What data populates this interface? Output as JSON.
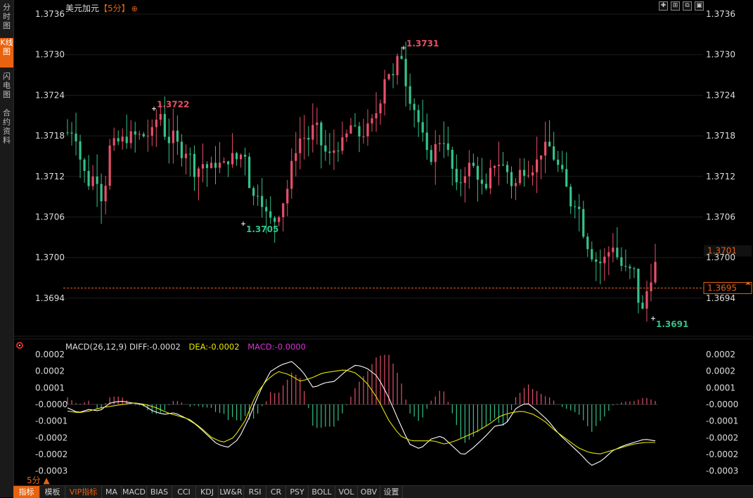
{
  "sidebar": {
    "tabs": [
      {
        "label": "分时图",
        "active": false
      },
      {
        "label": "K线图",
        "active": true
      },
      {
        "label": "闪电图",
        "active": false
      },
      {
        "label": "合约资料",
        "active": false
      }
    ]
  },
  "header": {
    "symbol": "美元加元",
    "period": "【5分】",
    "period_icon": "target-icon"
  },
  "window_controls": [
    {
      "name": "crosshair-icon",
      "glyph": "✚"
    },
    {
      "name": "expand-icon",
      "glyph": "⊞"
    },
    {
      "name": "restore-icon",
      "glyph": "⧉"
    },
    {
      "name": "box-icon",
      "glyph": "▣"
    }
  ],
  "macd": {
    "label": "MACD(26,12,9)",
    "diff": "DIFF:-0.0002",
    "dea": "DEA:-0.0002",
    "macd": "MACD:-0.0000"
  },
  "bottom": {
    "period": "5分 ▲"
  },
  "toolbar": [
    {
      "label": "指标",
      "active": true
    },
    {
      "label": "模板"
    },
    {
      "label": "VIP指标",
      "vip": true
    },
    {
      "label": "MA"
    },
    {
      "label": "MACD"
    },
    {
      "label": "BIAS"
    },
    {
      "label": "CCI"
    },
    {
      "label": "KDJ"
    },
    {
      "label": "LW&R"
    },
    {
      "label": "RSI"
    },
    {
      "label": "CR"
    },
    {
      "label": "PSY"
    },
    {
      "label": "BOLL"
    },
    {
      "label": "VOL"
    },
    {
      "label": "OBV"
    },
    {
      "label": "设置"
    }
  ],
  "colors": {
    "up": "#e84f6a",
    "down": "#33c38a",
    "diff": "#ffffff",
    "dea": "#e6e600",
    "accent": "#e8620f",
    "dashed": "#e8620f"
  },
  "chart_data": [
    {
      "type": "candlestick",
      "title": "美元加元【5分】",
      "y_ticks": [
        "1.3736",
        "1.3730",
        "1.3724",
        "1.3718",
        "1.3712",
        "1.3706",
        "1.3700",
        "1.3694"
      ],
      "ylim": [
        1.3689,
        1.3737
      ],
      "annotations": [
        {
          "label": "1.3722",
          "value": 1.3722,
          "kind": "high"
        },
        {
          "label": "1.3705",
          "value": 1.3705,
          "kind": "low"
        },
        {
          "label": "1.3731",
          "value": 1.3731,
          "kind": "high"
        },
        {
          "label": "1.3691",
          "value": 1.3691,
          "kind": "low"
        }
      ],
      "current_price": {
        "label": "1.3701",
        "value": 1.3701
      },
      "reference_line": {
        "label": "1.3695",
        "value": 1.36955
      },
      "waypoints": [
        [
          1.37185,
          1.3719
        ],
        [
          1.37135,
          1.3711
        ],
        [
          1.37125,
          1.3708
        ],
        [
          1.37165,
          1.3717
        ],
        [
          1.37175,
          1.3718
        ],
        [
          1.3718,
          1.3718
        ],
        [
          1.37185,
          1.3722
        ],
        [
          1.3717,
          1.3718
        ],
        [
          1.37155,
          1.3716
        ],
        [
          1.37125,
          1.3714
        ],
        [
          1.3713,
          1.3714
        ],
        [
          1.37135,
          1.3715
        ],
        [
          1.37145,
          1.3716
        ],
        [
          1.37085,
          1.371
        ],
        [
          1.37065,
          1.3705
        ],
        [
          1.3707,
          1.371
        ],
        [
          1.37155,
          1.3718
        ],
        [
          1.37175,
          1.372
        ],
        [
          1.3716,
          1.3715
        ],
        [
          1.37165,
          1.3717
        ],
        [
          1.37195,
          1.3718
        ],
        [
          1.37185,
          1.372
        ],
        [
          1.37225,
          1.3728
        ],
        [
          1.37265,
          1.3731
        ],
        [
          1.37245,
          1.3722
        ],
        [
          1.37185,
          1.3714
        ],
        [
          1.37165,
          1.3718
        ],
        [
          1.37145,
          1.371
        ],
        [
          1.37125,
          1.3714
        ],
        [
          1.3712,
          1.3709
        ],
        [
          1.3714,
          1.3714
        ],
        [
          1.3713,
          1.371
        ],
        [
          1.3713,
          1.3713
        ],
        [
          1.37135,
          1.3716
        ],
        [
          1.37165,
          1.3714
        ],
        [
          1.3712,
          1.3708
        ],
        [
          1.37085,
          1.3703
        ],
        [
          1.37005,
          1.3699
        ],
        [
          1.37,
          1.3702
        ],
        [
          1.3699,
          1.3698
        ],
        [
          1.3698,
          1.3691
        ],
        [
          1.3696,
          1.3699
        ]
      ]
    },
    {
      "type": "macd",
      "y_ticks": [
        "0.0002",
        "0.0002",
        "0.0001",
        "-0.0000",
        "-0.0001",
        "-0.0002",
        "-0.0002",
        "-0.0003"
      ],
      "ylim": [
        -0.00038,
        0.00029
      ],
      "series": [
        {
          "name": "DIFF",
          "waypoints": [
            -2e-05,
            -5e-05,
            -3e-05,
            -4e-05,
            1e-05,
            2e-05,
            1e-05,
            0.0,
            -4e-05,
            -6e-05,
            -5e-05,
            -8e-05,
            -0.00012,
            -0.00018,
            -0.00024,
            -0.00026,
            -0.00021,
            -8e-05,
            8e-05,
            0.0002,
            0.00024,
            0.00026,
            0.0002,
            0.0001,
            0.00013,
            0.00014,
            0.0002,
            0.00024,
            0.00022,
            0.00017,
            5e-05,
            -0.0001,
            -0.00024,
            -0.00027,
            -0.00021,
            -0.00019,
            -0.00025,
            -0.00031,
            -0.00026,
            -0.0002,
            -0.00013,
            -0.00012,
            -2e-05,
            1e-05,
            -4e-05,
            -0.0001,
            -0.00018,
            -0.00024,
            -0.0003,
            -0.00037,
            -0.00034,
            -0.00028,
            -0.00025,
            -0.00023,
            -0.00021,
            -0.00022
          ]
        },
        {
          "name": "DEA",
          "waypoints": [
            -4e-05,
            -5e-05,
            -4e-05,
            -2e-05,
            -1e-05,
            0.0,
            1e-05,
            0.0,
            -2e-05,
            -5e-05,
            -7e-05,
            -9e-05,
            -0.00014,
            -0.0002,
            -0.00023,
            -0.0002,
            -0.0001,
            6e-05,
            0.00015,
            0.0002,
            0.00018,
            0.00014,
            0.00016,
            0.00019,
            0.0002,
            0.00021,
            0.00019,
            0.00013,
            3e-05,
            -0.0001,
            -0.00019,
            -0.00022,
            -0.00022,
            -0.00022,
            -0.00024,
            -0.00022,
            -0.00019,
            -0.00016,
            -0.00012,
            -7e-05,
            -5e-05,
            -4e-05,
            -6e-05,
            -0.0001,
            -0.00016,
            -0.00021,
            -0.00026,
            -0.00029,
            -0.0003,
            -0.00028,
            -0.00026,
            -0.00024,
            -0.00023,
            -0.00023
          ]
        }
      ]
    }
  ]
}
